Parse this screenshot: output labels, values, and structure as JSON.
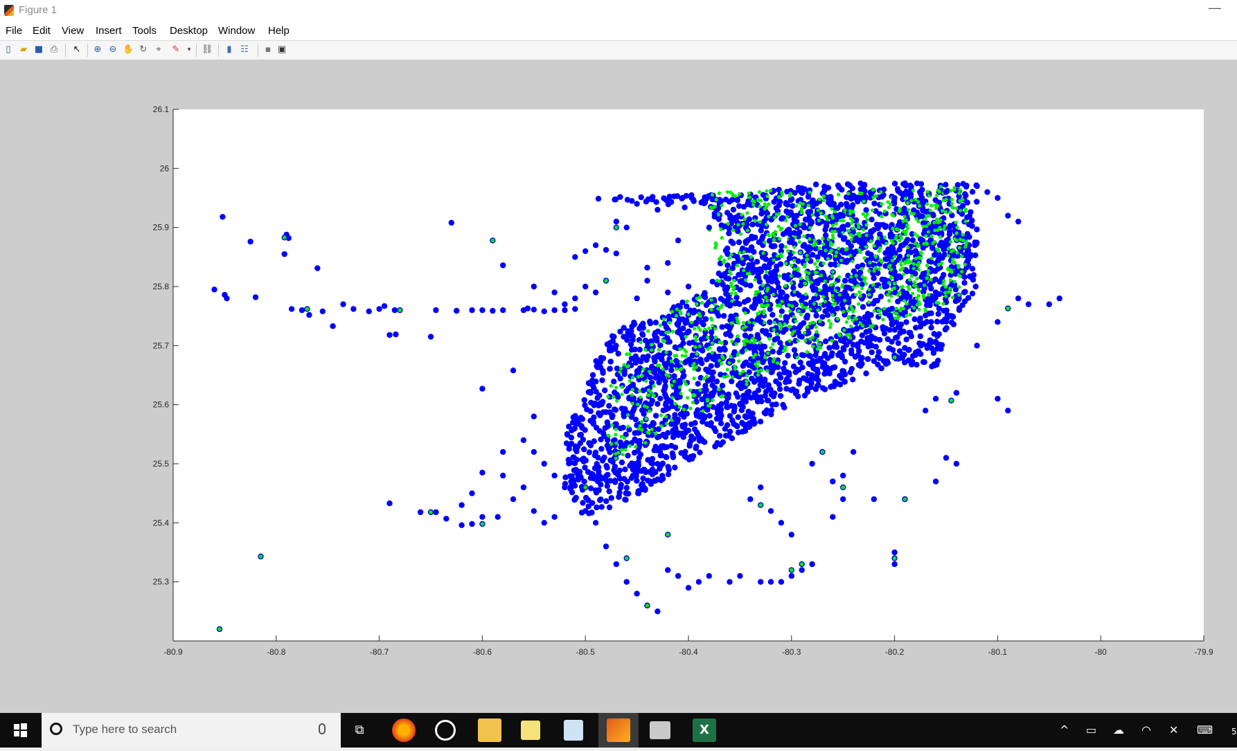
{
  "window": {
    "title": "Figure 1",
    "min_glyph": "—"
  },
  "menu": [
    "File",
    "Edit",
    "View",
    "Insert",
    "Tools",
    "Desktop",
    "Window",
    "Help"
  ],
  "toolbar": {
    "buttons": [
      "new-figure-icon",
      "open-icon",
      "save-icon",
      "print-icon",
      "edit-plot-icon",
      "zoom-in-icon",
      "zoom-out-icon",
      "pan-icon",
      "rotate-3d-icon",
      "data-cursor-icon",
      "brush-icon",
      "link-plot-icon",
      "colorbar-icon",
      "legend-icon",
      "hide-plot-tools-icon",
      "show-plot-tools-icon"
    ]
  },
  "chart_data": {
    "type": "scatter",
    "title": "",
    "xlabel": "",
    "ylabel": "",
    "xlim": [
      -80.9,
      -79.9
    ],
    "ylim": [
      25.2,
      26.1
    ],
    "xticks": [
      "-80.9",
      "-80.8",
      "-80.7",
      "-80.6",
      "-80.5",
      "-80.4",
      "-80.3",
      "-80.2",
      "-80.1",
      "-80",
      "-79.9"
    ],
    "yticks": [
      "25.3",
      "25.4",
      "25.5",
      "25.6",
      "25.7",
      "25.8",
      "25.9",
      "26",
      "26.1"
    ],
    "grid": false,
    "colors": {
      "series_blue": "#0000ff",
      "series_green": "#00ee00"
    },
    "series": [
      {
        "color": "#0000ff",
        "points": [
          [
            -80.86,
            25.795
          ],
          [
            -80.85,
            25.786
          ],
          [
            -80.848,
            25.78
          ],
          [
            -80.82,
            25.782
          ],
          [
            -80.852,
            25.918
          ],
          [
            -80.825,
            25.876
          ],
          [
            -80.79,
            25.888
          ],
          [
            -80.792,
            25.855
          ],
          [
            -80.788,
            25.882
          ],
          [
            -80.76,
            25.831
          ],
          [
            -80.785,
            25.762
          ],
          [
            -80.775,
            25.76
          ],
          [
            -80.768,
            25.752
          ],
          [
            -80.755,
            25.758
          ],
          [
            -80.745,
            25.733
          ],
          [
            -80.735,
            25.77
          ],
          [
            -80.725,
            25.762
          ],
          [
            -80.71,
            25.758
          ],
          [
            -80.7,
            25.762
          ],
          [
            -80.695,
            25.767
          ],
          [
            -80.685,
            25.76
          ],
          [
            -80.69,
            25.718
          ],
          [
            -80.684,
            25.719
          ],
          [
            -80.65,
            25.715
          ],
          [
            -80.645,
            25.76
          ],
          [
            -80.63,
            25.908
          ],
          [
            -80.625,
            25.759
          ],
          [
            -80.61,
            25.76
          ],
          [
            -80.6,
            25.76
          ],
          [
            -80.59,
            25.759
          ],
          [
            -80.58,
            25.76
          ],
          [
            -80.56,
            25.76
          ],
          [
            -80.55,
            25.761
          ],
          [
            -80.54,
            25.758
          ],
          [
            -80.53,
            25.76
          ],
          [
            -80.52,
            25.76
          ],
          [
            -80.51,
            25.762
          ],
          [
            -80.58,
            25.836
          ],
          [
            -80.556,
            25.763
          ],
          [
            -80.6,
            25.627
          ],
          [
            -80.57,
            25.658
          ],
          [
            -80.55,
            25.58
          ],
          [
            -80.61,
            25.398
          ],
          [
            -80.62,
            25.396
          ],
          [
            -80.6,
            25.41
          ],
          [
            -80.585,
            25.41
          ],
          [
            -80.66,
            25.418
          ],
          [
            -80.645,
            25.418
          ],
          [
            -80.635,
            25.407
          ],
          [
            -80.69,
            25.433
          ],
          [
            -80.6,
            25.485
          ],
          [
            -80.58,
            25.52
          ],
          [
            -80.55,
            25.8
          ],
          [
            -80.53,
            25.79
          ],
          [
            -80.41,
            25.878
          ],
          [
            -80.38,
            25.9
          ],
          [
            -80.43,
            25.93
          ],
          [
            -80.45,
            25.94
          ],
          [
            -80.5,
            25.86
          ],
          [
            -80.51,
            25.85
          ],
          [
            -80.48,
            25.862
          ],
          [
            -80.47,
            25.856
          ],
          [
            -80.44,
            25.832
          ],
          [
            -80.42,
            25.84
          ],
          [
            -80.46,
            25.9
          ],
          [
            -80.47,
            25.91
          ],
          [
            -80.49,
            25.87
          ],
          [
            -80.5,
            25.8
          ],
          [
            -80.49,
            25.79
          ],
          [
            -80.51,
            25.78
          ],
          [
            -80.52,
            25.77
          ],
          [
            -80.45,
            25.78
          ],
          [
            -80.42,
            25.79
          ],
          [
            -80.4,
            25.8
          ],
          [
            -80.44,
            25.81
          ],
          [
            -80.35,
            25.82
          ],
          [
            -80.3,
            25.88
          ],
          [
            -80.25,
            25.92
          ],
          [
            -80.2,
            25.95
          ],
          [
            -80.15,
            25.96
          ],
          [
            -80.12,
            25.97
          ],
          [
            -80.11,
            25.96
          ],
          [
            -80.1,
            25.95
          ],
          [
            -80.09,
            25.92
          ],
          [
            -80.08,
            25.91
          ],
          [
            -80.07,
            25.77
          ],
          [
            -80.08,
            25.78
          ],
          [
            -80.1,
            25.74
          ],
          [
            -80.12,
            25.7
          ],
          [
            -80.14,
            25.62
          ],
          [
            -80.16,
            25.61
          ],
          [
            -80.17,
            25.59
          ],
          [
            -80.1,
            25.61
          ],
          [
            -80.09,
            25.59
          ],
          [
            -80.15,
            25.51
          ],
          [
            -80.14,
            25.5
          ],
          [
            -80.16,
            25.47
          ],
          [
            -80.19,
            25.44
          ],
          [
            -80.2,
            25.35
          ],
          [
            -80.2,
            25.33
          ],
          [
            -80.22,
            25.44
          ],
          [
            -80.24,
            25.52
          ],
          [
            -80.25,
            25.48
          ],
          [
            -80.26,
            25.47
          ],
          [
            -80.27,
            25.52
          ],
          [
            -80.28,
            25.5
          ],
          [
            -80.25,
            25.44
          ],
          [
            -80.26,
            25.41
          ],
          [
            -80.28,
            25.33
          ],
          [
            -80.29,
            25.32
          ],
          [
            -80.3,
            25.31
          ],
          [
            -80.31,
            25.3
          ],
          [
            -80.32,
            25.3
          ],
          [
            -80.33,
            25.3
          ],
          [
            -80.35,
            25.31
          ],
          [
            -80.36,
            25.3
          ],
          [
            -80.38,
            25.31
          ],
          [
            -80.39,
            25.3
          ],
          [
            -80.4,
            25.29
          ],
          [
            -80.41,
            25.31
          ],
          [
            -80.42,
            25.32
          ],
          [
            -80.43,
            25.25
          ],
          [
            -80.44,
            25.26
          ],
          [
            -80.45,
            25.28
          ],
          [
            -80.46,
            25.3
          ],
          [
            -80.47,
            25.33
          ],
          [
            -80.48,
            25.36
          ],
          [
            -80.49,
            25.4
          ],
          [
            -80.5,
            25.42
          ],
          [
            -80.51,
            25.44
          ],
          [
            -80.52,
            25.46
          ],
          [
            -80.53,
            25.48
          ],
          [
            -80.54,
            25.5
          ],
          [
            -80.55,
            25.52
          ],
          [
            -80.56,
            25.54
          ],
          [
            -80.53,
            25.41
          ],
          [
            -80.54,
            25.4
          ],
          [
            -80.55,
            25.42
          ],
          [
            -80.57,
            25.44
          ],
          [
            -80.56,
            25.46
          ],
          [
            -80.58,
            25.48
          ],
          [
            -80.62,
            25.43
          ],
          [
            -80.61,
            25.45
          ],
          [
            -80.33,
            25.46
          ],
          [
            -80.34,
            25.44
          ],
          [
            -80.32,
            25.42
          ],
          [
            -80.31,
            25.4
          ],
          [
            -80.3,
            25.38
          ],
          [
            -80.05,
            25.77
          ],
          [
            -80.04,
            25.78
          ]
        ]
      },
      {
        "color": "#00ee00",
        "points": [
          [
            -80.855,
            25.22
          ],
          [
            -80.815,
            25.343
          ],
          [
            -80.792,
            25.883
          ],
          [
            -80.59,
            25.878
          ],
          [
            -80.77,
            25.762
          ],
          [
            -80.68,
            25.76
          ],
          [
            -80.47,
            25.9
          ],
          [
            -80.48,
            25.81
          ],
          [
            -80.65,
            25.418
          ],
          [
            -80.6,
            25.398
          ],
          [
            -80.3,
            25.32
          ],
          [
            -80.29,
            25.33
          ],
          [
            -80.25,
            25.46
          ],
          [
            -80.27,
            25.52
          ],
          [
            -80.19,
            25.44
          ],
          [
            -80.145,
            25.607
          ],
          [
            -80.2,
            25.68
          ],
          [
            -80.09,
            25.763
          ],
          [
            -80.2,
            25.34
          ],
          [
            -80.42,
            25.38
          ],
          [
            -80.46,
            25.34
          ],
          [
            -80.44,
            25.26
          ],
          [
            -80.5,
            25.46
          ],
          [
            -80.33,
            25.43
          ]
        ]
      }
    ],
    "dense_region_description_counts": {
      "blue_cluster_points": 2600,
      "green_cluster_points": 900
    }
  },
  "taskbar": {
    "search_placeholder": "Type here to search",
    "apps": [
      "task-view-icon",
      "firefox-icon",
      "groove-icon",
      "file-explorer-icon",
      "sticky-notes-icon",
      "paint-icon",
      "matlab-icon",
      "remote-desktop-icon",
      "excel-icon"
    ],
    "excel_label": "X",
    "tray_clock_fragment": "5"
  }
}
